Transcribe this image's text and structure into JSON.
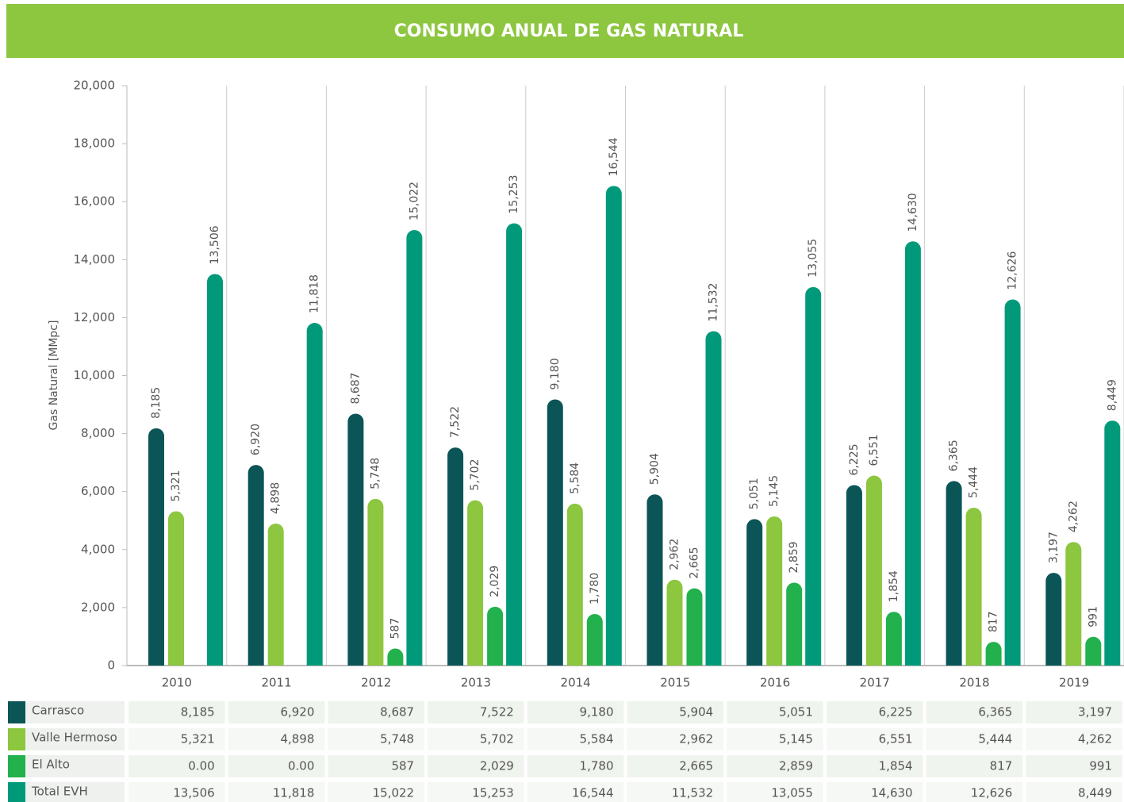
{
  "chart_data": {
    "type": "bar",
    "title": "CONSUMO ANUAL DE GAS NATURAL",
    "y_label": "Gas Natural [MMpc]",
    "categories": [
      "2010",
      "2011",
      "2012",
      "2013",
      "2014",
      "2015",
      "2016",
      "2017",
      "2018",
      "2019"
    ],
    "series": [
      {
        "name": "Carrasco",
        "color": "#0b5557",
        "values": [
          8185,
          6920,
          8687,
          7522,
          9180,
          5904,
          5051,
          6225,
          6365,
          3197
        ],
        "value_labels": [
          "8,185",
          "6,920",
          "8,687",
          "7,522",
          "9,180",
          "5,904",
          "5,051",
          "6,225",
          "6,365",
          "3,197"
        ]
      },
      {
        "name": "Valle Hermoso",
        "color": "#8dc63f",
        "values": [
          5321,
          4898,
          5748,
          5702,
          5584,
          2962,
          5145,
          6551,
          5444,
          4262
        ],
        "value_labels": [
          "5,321",
          "4,898",
          "5,748",
          "5,702",
          "5,584",
          "2,962",
          "5,145",
          "6,551",
          "5,444",
          "4,262"
        ]
      },
      {
        "name": "El Alto",
        "color": "#22b14c",
        "values": [
          0,
          0,
          587,
          2029,
          1780,
          2665,
          2859,
          1854,
          817,
          991
        ],
        "value_labels": [
          "0.00",
          "0.00",
          "587",
          "2,029",
          "1,780",
          "2,665",
          "2,859",
          "1,854",
          "817",
          "991"
        ]
      },
      {
        "name": "Total EVH",
        "color": "#009a7a",
        "values": [
          13506,
          11818,
          15022,
          15253,
          16544,
          11532,
          13055,
          14630,
          12626,
          8449
        ],
        "value_labels": [
          "13,506",
          "11,818",
          "15,022",
          "15,253",
          "16,544",
          "11,532",
          "13,055",
          "14,630",
          "12,626",
          "8,449"
        ]
      }
    ],
    "ylim": [
      0,
      20000
    ],
    "yticks": [
      0,
      {
        "value": 2000,
        "label": "2,000"
      },
      {
        "value": 4000,
        "label": "4,000"
      },
      {
        "value": 6000,
        "label": "6,000"
      },
      {
        "value": 8000,
        "label": "8,000"
      },
      {
        "value": 10000,
        "label": "10,000"
      },
      {
        "value": 12000,
        "label": "12,000"
      },
      {
        "value": 14000,
        "label": "14,000"
      },
      {
        "value": 16000,
        "label": "16,000"
      },
      {
        "value": 18000,
        "label": "18,000"
      },
      {
        "value": 20000,
        "label": "20,000"
      }
    ],
    "grid": true
  }
}
